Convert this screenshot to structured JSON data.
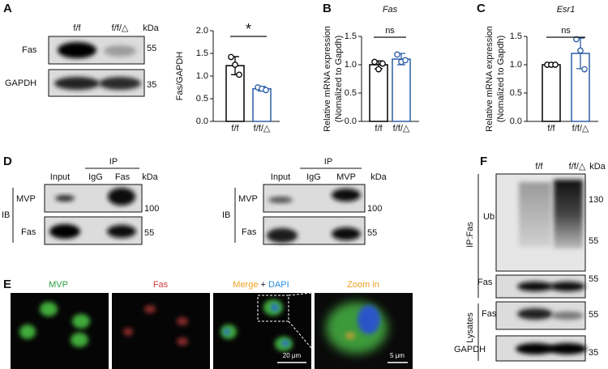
{
  "panel_letters": [
    "A",
    "B",
    "C",
    "D",
    "E",
    "F"
  ],
  "chart_data": [
    {
      "type": "bar",
      "ylabel": "Fas/GAPDH",
      "categories": [
        "f/f",
        "f/f/△"
      ],
      "values": [
        1.23,
        0.72
      ],
      "errors": [
        0.2,
        0.05
      ],
      "points": [
        [
          1.42,
          1.25,
          1.03
        ],
        [
          0.75,
          0.72,
          0.69
        ]
      ],
      "colors": [
        "#000000",
        "#2b5da6"
      ],
      "ylim": [
        0,
        2
      ],
      "yticks": [
        {
          "value": 0,
          "label": "0.0"
        },
        0.5,
        {
          "value": 1,
          "label": "1.0"
        },
        1.5,
        {
          "value": 2,
          "label": "2.0"
        }
      ],
      "significance": "*"
    },
    {
      "type": "bar",
      "title": "Fas",
      "ylabel": [
        "Relative mRNA expression",
        "(Nomalized to Gapdh)"
      ],
      "categories": [
        "f/f",
        "f/f/△"
      ],
      "values": [
        1.0,
        1.1
      ],
      "errors": [
        0.07,
        0.1
      ],
      "points": [
        [
          1.05,
          0.92,
          1.02
        ],
        [
          1.18,
          1.05,
          1.08
        ]
      ],
      "colors": [
        "#000000",
        "#2b5da6"
      ],
      "ylim": [
        0,
        1.5
      ],
      "yticks": [
        {
          "value": 0,
          "label": "0.0"
        },
        0.5,
        {
          "value": 1,
          "label": "1.0"
        },
        1.5
      ],
      "significance": "ns"
    },
    {
      "type": "bar",
      "title": "Esr1",
      "ylabel": [
        "Relative mRNA expression",
        "(Nomalized to Gapdh)"
      ],
      "categories": [
        "f/f",
        "f/f/△"
      ],
      "values": [
        1.0,
        1.2
      ],
      "errors": [
        0.0,
        0.27
      ],
      "points": [
        [
          1.0,
          1.0,
          1.0
        ],
        [
          1.45,
          1.25,
          0.92
        ]
      ],
      "colors": [
        "#000000",
        "#2b5da6"
      ],
      "ylim": [
        0,
        1.5
      ],
      "yticks": [
        {
          "value": 0,
          "label": "0.0"
        },
        0.5,
        {
          "value": 1,
          "label": "1.0"
        },
        1.5
      ],
      "significance": "ns"
    }
  ],
  "blot_a": {
    "lanes": [
      "f/f",
      "f/f/△"
    ],
    "unit": "kDa",
    "rows": [
      {
        "label": "Fas",
        "marker": "55"
      },
      {
        "label": "GAPDH",
        "marker": "35"
      }
    ]
  },
  "blot_d": [
    {
      "ip": "IP",
      "lanes": [
        "Input",
        "IgG",
        "Fas"
      ],
      "unit": "kDa",
      "ib": "IB",
      "rows": [
        {
          "label": "MVP",
          "marker": "100"
        },
        {
          "label": "Fas",
          "marker": "55"
        }
      ]
    },
    {
      "ip": "IP",
      "lanes": [
        "Input",
        "IgG",
        "MVP"
      ],
      "unit": "kDa",
      "ib": "IB",
      "rows": [
        {
          "label": "MVP",
          "marker": "100"
        },
        {
          "label": "Fas",
          "marker": "55"
        }
      ]
    }
  ],
  "panel_e": {
    "labels": {
      "mvp": "MVP",
      "fas": "Fas",
      "merge": "Merge",
      "plus": "+",
      "dapi": "DAPI",
      "zoom": "Zoom in"
    },
    "scale_bars": [
      "20 μm",
      "5 μm"
    ]
  },
  "blot_f": {
    "lanes": [
      "f/f",
      "f/f/△"
    ],
    "unit": "kDa",
    "ip": "IP:Fas",
    "lysates": "Lysates",
    "rows": [
      {
        "label": "Ub",
        "markers": [
          "130",
          "55"
        ]
      },
      {
        "label": "Fas",
        "markers": [
          "55"
        ]
      },
      {
        "label": "Fas",
        "markers": [
          "55"
        ]
      },
      {
        "label": "GAPDH",
        "markers": [
          "35"
        ]
      }
    ]
  }
}
